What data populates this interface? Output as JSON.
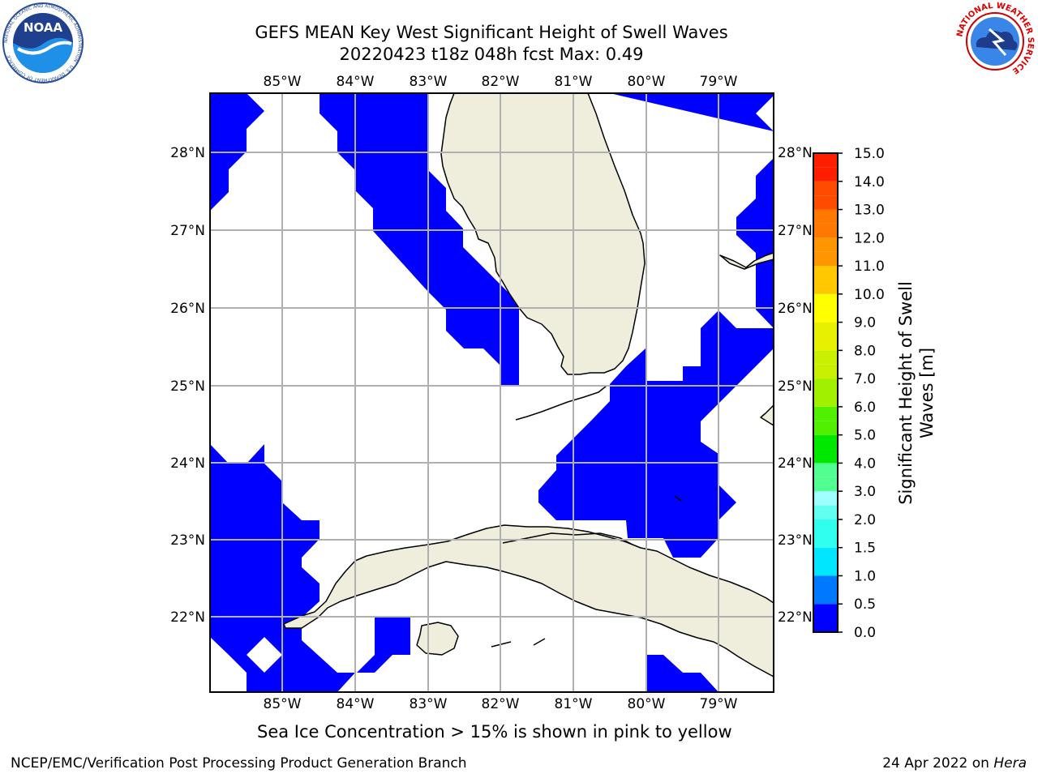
{
  "title_line1": "GEFS MEAN Key West Significant Height of Swell Waves",
  "title_line2": "20220423 t18z 048h fcst   Max: 0.49",
  "note": "Sea Ice Concentration > 15% is shown in pink to yellow",
  "footer_left": "NCEP/EMC/Verification Post Processing Product Generation Branch",
  "footer_date": "24 Apr 2022 on ",
  "footer_host": "Hera",
  "logos": {
    "noaa_text": "NOAA",
    "noaa_ring": "NATIONAL OCEANIC AND ATMOSPHERIC ADMINISTRATION · U.S. DEPARTMENT OF COMMERCE",
    "nws_ring": "NATIONAL WEATHER SERVICE"
  },
  "map": {
    "lon_labels": [
      "85°W",
      "84°W",
      "83°W",
      "82°W",
      "81°W",
      "80°W",
      "79°W"
    ],
    "lat_labels": [
      "28°N",
      "27°N",
      "26°N",
      "25°N",
      "24°N",
      "23°N",
      "22°N"
    ],
    "colors": {
      "swell_low": "#0000ff",
      "land": "#efeedd",
      "ocean": "#ffffff",
      "grid": "#b0b0b0"
    }
  },
  "colorbar": {
    "label": "Significant Height of Swell Waves [m]",
    "label_line1": "Significant Height of Swell",
    "label_line2": "Waves [m]",
    "ticks": [
      "15.0",
      "14.0",
      "13.0",
      "12.0",
      "11.0",
      "10.0",
      "9.0",
      "8.0",
      "7.0",
      "6.0",
      "5.0",
      "4.0",
      "3.0",
      "2.0",
      "1.5",
      "1.0",
      "0.5",
      "0.0"
    ],
    "bins": [
      {
        "from": 0.0,
        "to": 0.5,
        "color": "#0000ff"
      },
      {
        "from": 0.5,
        "to": 1.0,
        "color": "#0078ff"
      },
      {
        "from": 1.0,
        "to": 1.5,
        "color": "#00e6ff"
      },
      {
        "from": 1.5,
        "to": 2.0,
        "color": "#30ffef"
      },
      {
        "from": 2.0,
        "to": 2.5,
        "color": "#60ffef"
      },
      {
        "from": 2.5,
        "to": 3.0,
        "color": "#a0ffff"
      },
      {
        "from": 3.0,
        "to": 3.5,
        "color": "#50ff90"
      },
      {
        "from": 3.5,
        "to": 4.0,
        "color": "#50ff90"
      },
      {
        "from": 4.0,
        "to": 4.5,
        "color": "#00e800"
      },
      {
        "from": 4.5,
        "to": 5.0,
        "color": "#00e800"
      },
      {
        "from": 5.0,
        "to": 5.5,
        "color": "#50f000"
      },
      {
        "from": 5.5,
        "to": 6.0,
        "color": "#50f000"
      },
      {
        "from": 6.0,
        "to": 6.5,
        "color": "#a0f000"
      },
      {
        "from": 6.5,
        "to": 7.0,
        "color": "#a0f000"
      },
      {
        "from": 7.0,
        "to": 7.5,
        "color": "#c8f000"
      },
      {
        "from": 7.5,
        "to": 8.0,
        "color": "#c8f000"
      },
      {
        "from": 8.0,
        "to": 8.5,
        "color": "#e6f000"
      },
      {
        "from": 8.5,
        "to": 9.0,
        "color": "#e6f000"
      },
      {
        "from": 9.0,
        "to": 9.5,
        "color": "#ffff00"
      },
      {
        "from": 9.5,
        "to": 10.0,
        "color": "#ffff00"
      },
      {
        "from": 10.0,
        "to": 10.5,
        "color": "#ffc800"
      },
      {
        "from": 10.5,
        "to": 11.0,
        "color": "#ffc800"
      },
      {
        "from": 11.0,
        "to": 11.5,
        "color": "#ff9600"
      },
      {
        "from": 11.5,
        "to": 12.0,
        "color": "#ff9600"
      },
      {
        "from": 12.0,
        "to": 12.5,
        "color": "#ff7800"
      },
      {
        "from": 12.5,
        "to": 13.0,
        "color": "#ff7800"
      },
      {
        "from": 13.0,
        "to": 13.5,
        "color": "#ff4b00"
      },
      {
        "from": 13.5,
        "to": 14.0,
        "color": "#ff4b00"
      },
      {
        "from": 14.0,
        "to": 14.5,
        "color": "#ff1e00"
      },
      {
        "from": 14.5,
        "to": 15.0,
        "color": "#ff1e00"
      }
    ]
  }
}
